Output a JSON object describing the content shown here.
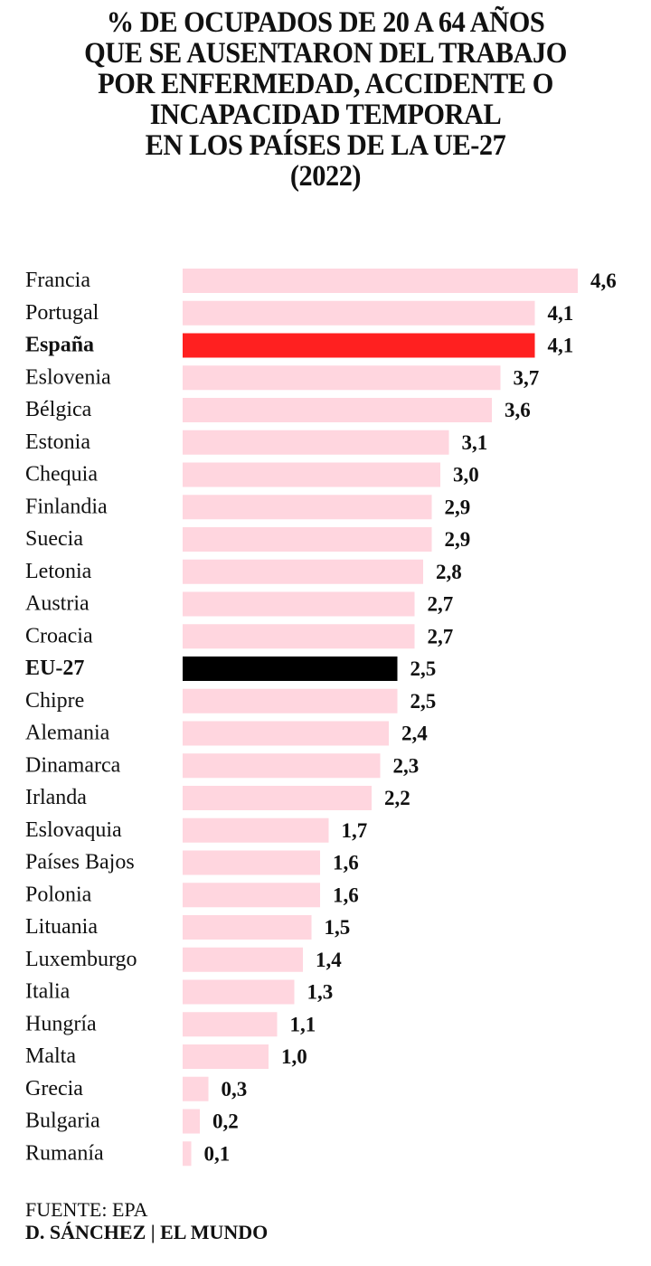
{
  "title_lines": [
    "% DE OCUPADOS DE 20 A 64 AÑOS",
    "QUE SE AUSENTARON DEL TRABAJO",
    "POR ENFERMEDAD, ACCIDENTE O",
    "INCAPACIDAD TEMPORAL",
    "EN LOS PAÍSES DE LA UE-27",
    "(2022)"
  ],
  "footer": {
    "source": "FUENTE: EPA",
    "credit": "D. SÁNCHEZ | EL MUNDO"
  },
  "colors": {
    "default_bar": "#ffd6df",
    "highlight_spain": "#ff2020",
    "highlight_eu": "#000000"
  },
  "chart_data": {
    "type": "bar",
    "orientation": "horizontal",
    "title": "% DE OCUPADOS DE 20 A 64 AÑOS QUE SE AUSENTARON DEL TRABAJO POR ENFERMEDAD, ACCIDENTE O INCAPACIDAD TEMPORAL EN LOS PAÍSES DE LA UE-27 (2022)",
    "xlabel": "",
    "ylabel": "",
    "xlim": [
      0,
      4.6
    ],
    "grid": false,
    "legend": "none",
    "categories": [
      "Francia",
      "Portugal",
      "España",
      "Eslovenia",
      "Bélgica",
      "Estonia",
      "Chequia",
      "Finlandia",
      "Suecia",
      "Letonia",
      "Austria",
      "Croacia",
      "EU-27",
      "Chipre",
      "Alemania",
      "Dinamarca",
      "Irlanda",
      "Eslovaquia",
      "Países Bajos",
      "Polonia",
      "Lituania",
      "Luxemburgo",
      "Italia",
      "Hungría",
      "Malta",
      "Grecia",
      "Bulgaria",
      "Rumanía"
    ],
    "values": [
      4.6,
      4.1,
      4.1,
      3.7,
      3.6,
      3.1,
      3.0,
      2.9,
      2.9,
      2.8,
      2.7,
      2.7,
      2.5,
      2.5,
      2.4,
      2.3,
      2.2,
      1.7,
      1.6,
      1.6,
      1.5,
      1.4,
      1.3,
      1.1,
      1.0,
      0.3,
      0.2,
      0.1
    ],
    "value_labels": [
      "4,6",
      "4,1",
      "4,1",
      "3,7",
      "3,6",
      "3,1",
      "3,0",
      "2,9",
      "2,9",
      "2,8",
      "2,7",
      "2,7",
      "2,5",
      "2,5",
      "2,4",
      "2,3",
      "2,2",
      "1,7",
      "1,6",
      "1,6",
      "1,5",
      "1,4",
      "1,3",
      "1,1",
      "1,0",
      "0,3",
      "0,2",
      "0,1"
    ],
    "highlight": {
      "España": "spain",
      "EU-27": "eu"
    },
    "source": "FUENTE: EPA"
  }
}
